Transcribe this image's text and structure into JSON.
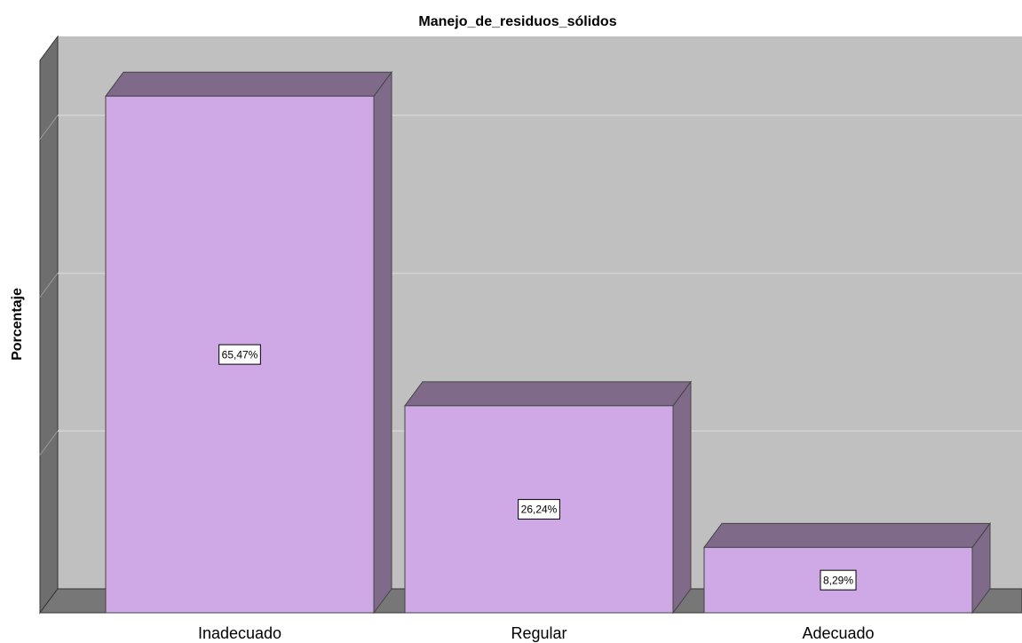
{
  "chart_data": {
    "type": "bar3d",
    "title": "Manejo_de_residuos_sólidos",
    "y_label": "Porcentaje",
    "categories": [
      "Inadecuado",
      "Regular",
      "Adecuado"
    ],
    "values": [
      65.47,
      26.24,
      8.29
    ],
    "value_labels": [
      "65,47%",
      "26,24%",
      "8,29%"
    ],
    "color": "#cfa8e6",
    "side_color": "#7f6a8a",
    "ylim": [
      0,
      70
    ],
    "yticks": [
      0,
      20,
      40,
      60
    ],
    "grid": true
  }
}
